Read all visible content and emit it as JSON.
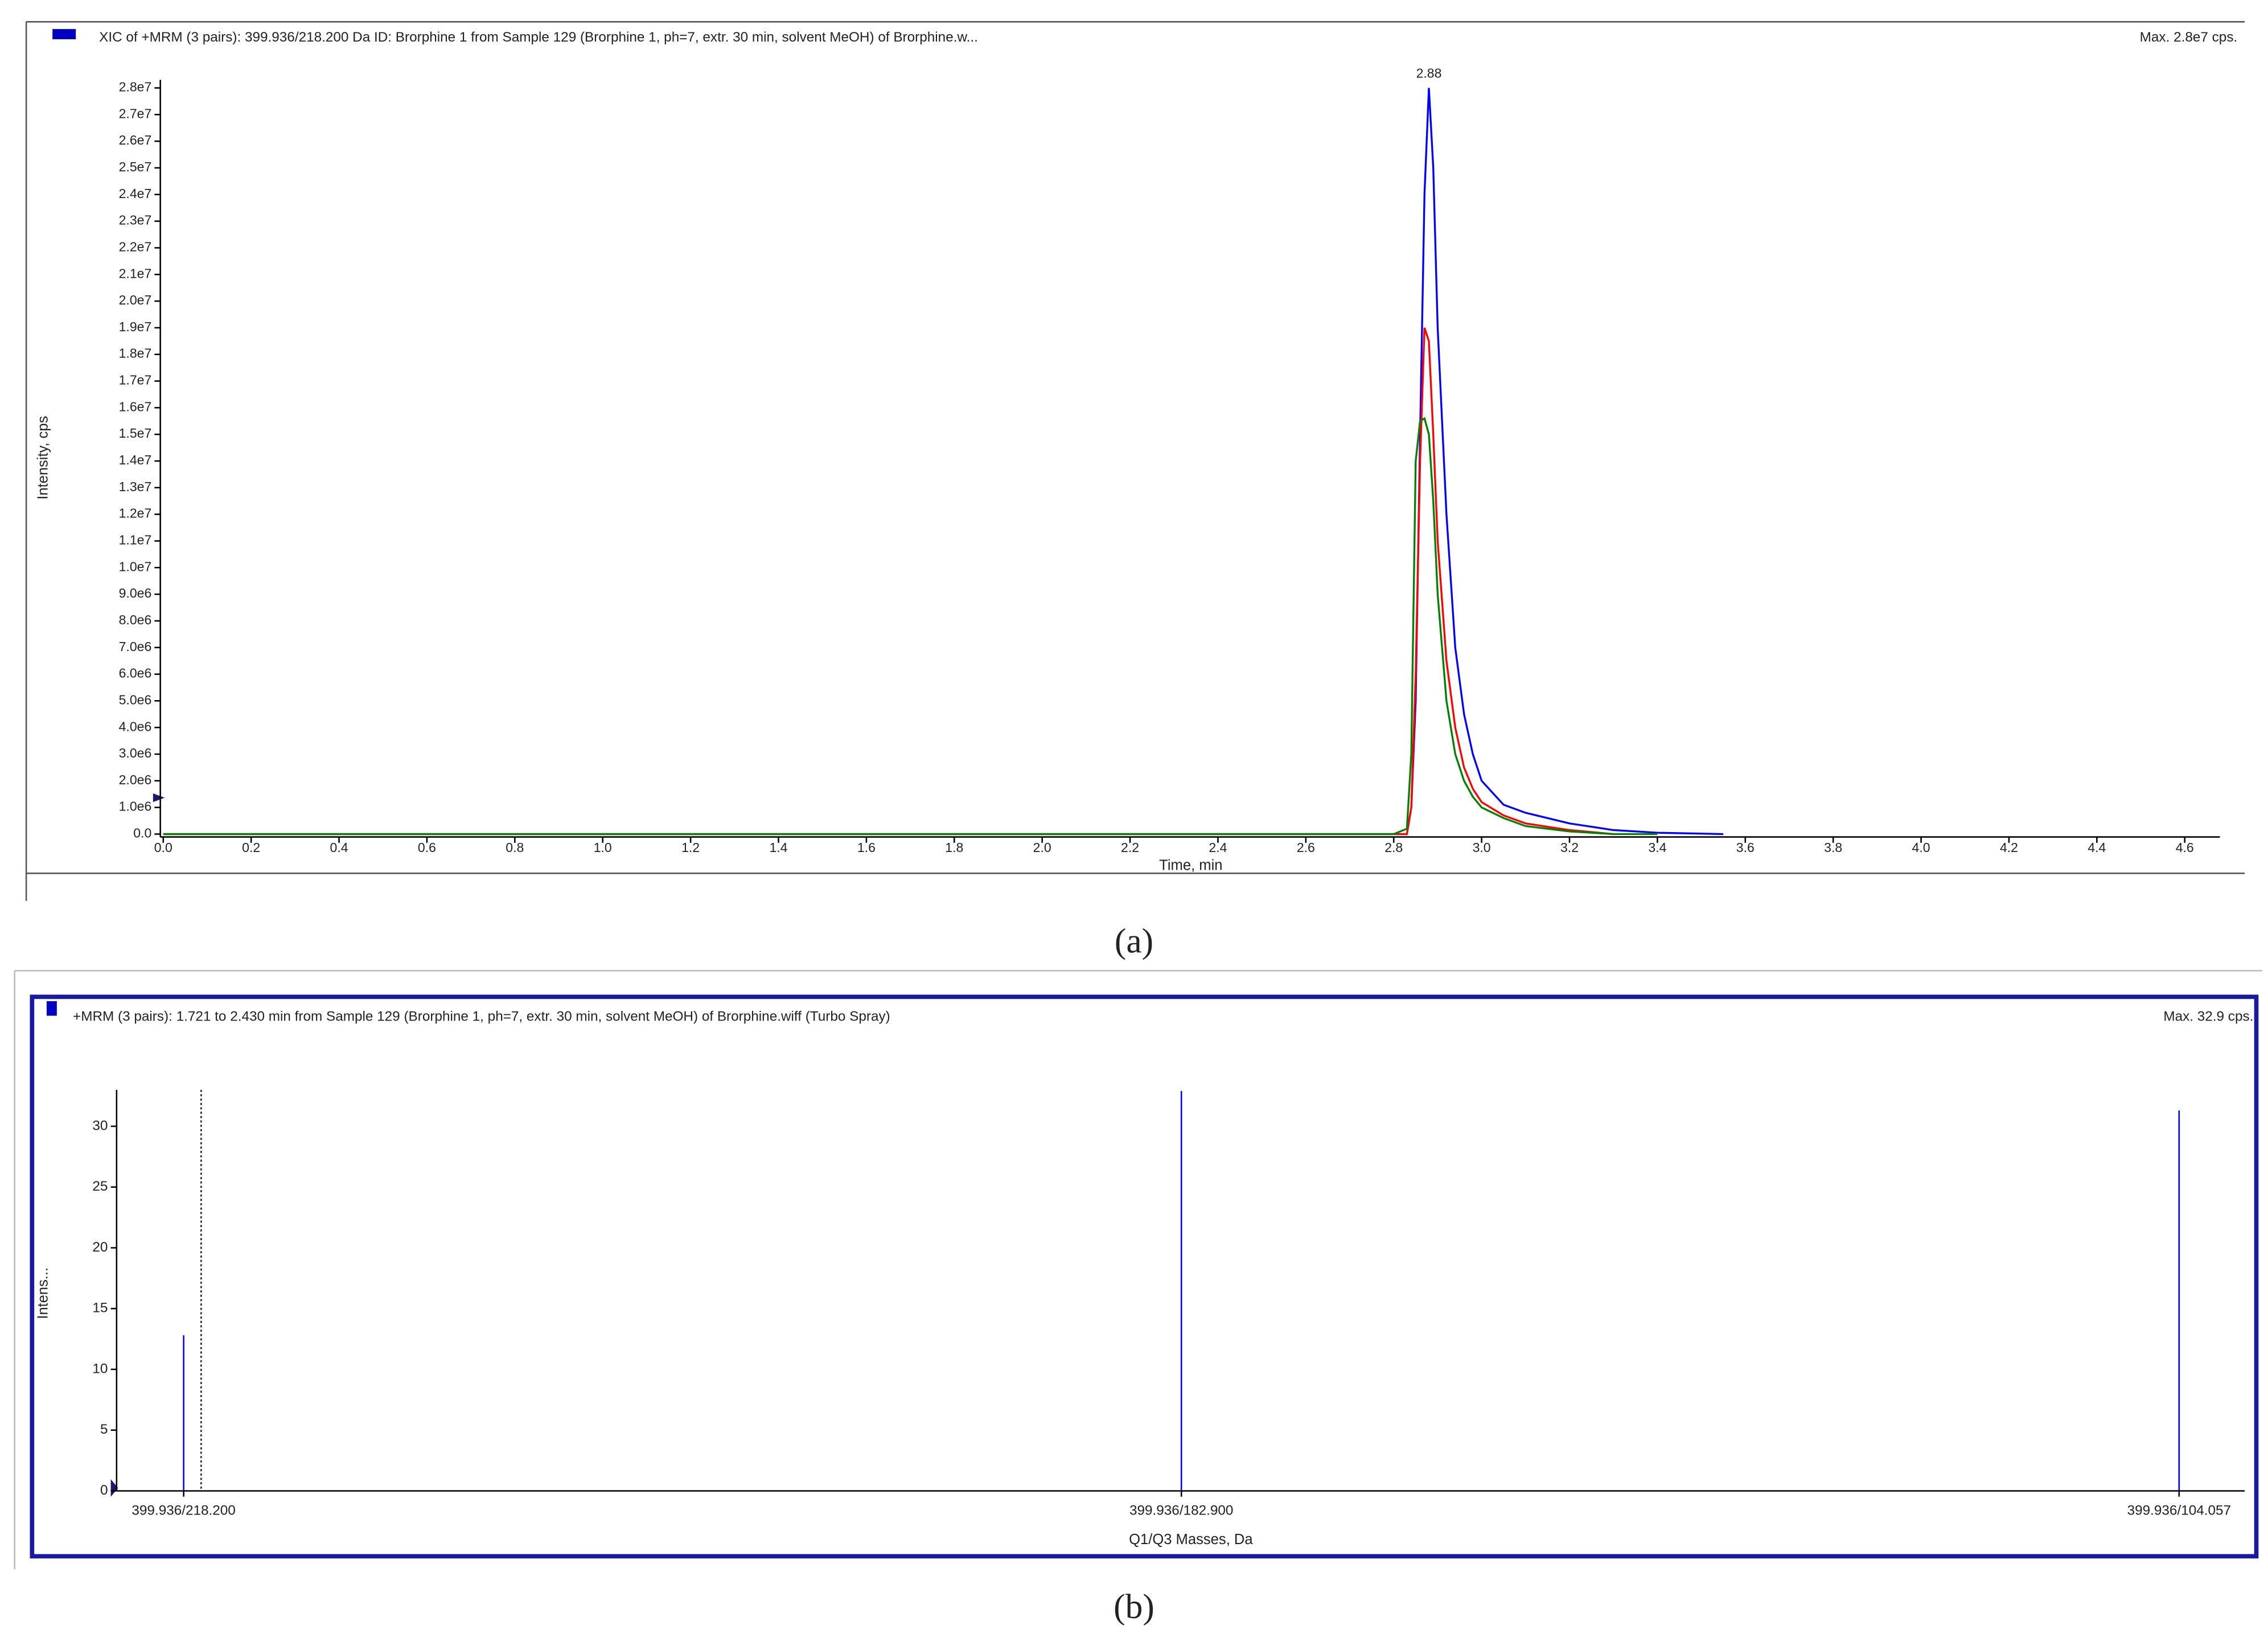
{
  "chart_data": [
    {
      "type": "line",
      "title": "XIC of +MRM (3 pairs): 399.936/218.200 Da ID: Brorphine 1 from Sample 129 (Brorphine 1, ph=7, extr. 30 min, solvent MeOH) of Brorphine.w...",
      "max_label": "Max. 2.8e7 cps.",
      "x_label": "Time, min",
      "y_label": "Intensity, cps",
      "caption": "(a)",
      "annotations": [
        {
          "text": "2.88",
          "x": 2.88
        }
      ],
      "xlim": [
        0,
        4.68
      ],
      "ylim": [
        0,
        28300000
      ],
      "xticks": [
        {
          "value": 0,
          "label": "0.0"
        },
        0.2,
        0.4,
        0.6,
        0.8,
        {
          "value": 1,
          "label": "1.0"
        },
        1.2,
        1.4,
        1.6,
        1.8,
        {
          "value": 2,
          "label": "2.0"
        },
        2.2,
        2.4,
        2.6,
        2.8,
        {
          "value": 3,
          "label": "3.0"
        },
        3.2,
        3.4,
        3.6,
        3.8,
        {
          "value": 4,
          "label": "4.0"
        },
        4.2,
        4.4,
        4.6
      ],
      "yticks": [
        {
          "value": 0,
          "label": "0.0"
        },
        {
          "value": 1000000,
          "label": "1.0e6"
        },
        {
          "value": 2000000,
          "label": "2.0e6"
        },
        {
          "value": 3000000,
          "label": "3.0e6"
        },
        {
          "value": 4000000,
          "label": "4.0e6"
        },
        {
          "value": 5000000,
          "label": "5.0e6"
        },
        {
          "value": 6000000,
          "label": "6.0e6"
        },
        {
          "value": 7000000,
          "label": "7.0e6"
        },
        {
          "value": 8000000,
          "label": "8.0e6"
        },
        {
          "value": 9000000,
          "label": "9.0e6"
        },
        {
          "value": 10000000,
          "label": "1.0e7"
        },
        {
          "value": 11000000,
          "label": "1.1e7"
        },
        {
          "value": 12000000,
          "label": "1.2e7"
        },
        {
          "value": 13000000,
          "label": "1.3e7"
        },
        {
          "value": 14000000,
          "label": "1.4e7"
        },
        {
          "value": 15000000,
          "label": "1.5e7"
        },
        {
          "value": 16000000,
          "label": "1.6e7"
        },
        {
          "value": 17000000,
          "label": "1.7e7"
        },
        {
          "value": 18000000,
          "label": "1.8e7"
        },
        {
          "value": 19000000,
          "label": "1.9e7"
        },
        {
          "value": 20000000,
          "label": "2.0e7"
        },
        {
          "value": 21000000,
          "label": "2.1e7"
        },
        {
          "value": 22000000,
          "label": "2.2e7"
        },
        {
          "value": 23000000,
          "label": "2.3e7"
        },
        {
          "value": 24000000,
          "label": "2.4e7"
        },
        {
          "value": 25000000,
          "label": "2.5e7"
        },
        {
          "value": 26000000,
          "label": "2.6e7"
        },
        {
          "value": 27000000,
          "label": "2.7e7"
        },
        {
          "value": 28000000,
          "label": "2.8e7"
        }
      ],
      "x": [
        0,
        2.8,
        2.83,
        2.84,
        2.85,
        2.86,
        2.87,
        2.88,
        2.89,
        2.9,
        2.92,
        2.94,
        2.96,
        2.98,
        3.0,
        3.05,
        3.1,
        3.2,
        3.3,
        3.4,
        3.55
      ],
      "series": [
        {
          "color": "#0000ff",
          "values": [
            0,
            0,
            0,
            1000000,
            5000000,
            15000000,
            24000000,
            28000000,
            25000000,
            19000000,
            12000000,
            7000000,
            4500000,
            3000000,
            2000000,
            1100000,
            800000,
            400000,
            150000,
            50000,
            0
          ]
        },
        {
          "color": "#ff0000",
          "values": [
            0,
            0,
            0,
            1000000,
            6000000,
            14000000,
            19000000,
            18500000,
            15000000,
            11000000,
            6500000,
            4000000,
            2500000,
            1700000,
            1200000,
            700000,
            400000,
            150000,
            0,
            null,
            null
          ]
        },
        {
          "color": "#008000",
          "values": [
            0,
            0,
            200000,
            3000000,
            14000000,
            15500000,
            15600000,
            15000000,
            12500000,
            9000000,
            5000000,
            3000000,
            2000000,
            1400000,
            1000000,
            600000,
            300000,
            100000,
            0,
            0,
            null
          ]
        }
      ]
    },
    {
      "type": "bar",
      "title": "+MRM (3 pairs): 1.721 to 2.430 min from Sample 129 (Brorphine 1, ph=7, extr. 30 min, solvent MeOH) of Brorphine.wiff (Turbo Spray)",
      "max_label": "Max. 32.9 cps.",
      "x_label": "Q1/Q3 Masses, Da",
      "y_label": "Intens...",
      "caption": "(b)",
      "categories": [
        "399.936/218.200",
        "399.936/182.900",
        "399.936/104.057"
      ],
      "values": [
        12.8,
        32.9,
        31.3
      ],
      "color": "#0000ff",
      "ylim": [
        0,
        33
      ],
      "yticks": [
        0,
        5,
        10,
        15,
        20,
        25,
        30
      ]
    }
  ]
}
